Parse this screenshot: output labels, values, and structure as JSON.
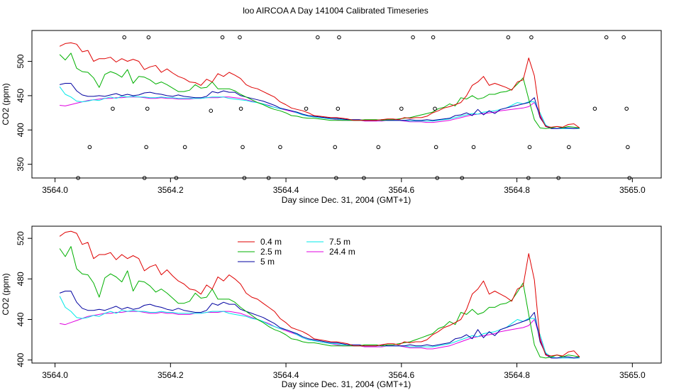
{
  "title": "loo AIRCOA A  Day 141004  Calibrated Timeseries",
  "chart_data": [
    {
      "type": "line+scatter",
      "xlabel": "Day since Dec. 31, 2004 (GMT+1)",
      "ylabel": "CO2 (ppm)",
      "xlim": [
        3563.96,
        3565.05
      ],
      "ylim": [
        330,
        545
      ],
      "xticks": [
        3564.0,
        3564.2,
        3564.4,
        3564.6,
        3564.8,
        3565.0
      ],
      "xtick_labels": [
        "3564.0",
        "3564.2",
        "3564.4",
        "3564.6",
        "3564.8",
        "3565.0"
      ],
      "yticks": [
        350,
        400,
        450,
        500
      ],
      "ytick_labels": [
        "350",
        "400",
        "450",
        "500"
      ],
      "grid": false,
      "legend": null,
      "markers": [
        {
          "x": 3564.04,
          "y": 330
        },
        {
          "x": 3564.06,
          "y": 375
        },
        {
          "x": 3564.1,
          "y": 431
        },
        {
          "x": 3564.12,
          "y": 535
        },
        {
          "x": 3564.155,
          "y": 330
        },
        {
          "x": 3564.158,
          "y": 375
        },
        {
          "x": 3564.16,
          "y": 431
        },
        {
          "x": 3564.162,
          "y": 535
        },
        {
          "x": 3564.21,
          "y": 330
        },
        {
          "x": 3564.225,
          "y": 375
        },
        {
          "x": 3564.27,
          "y": 428
        },
        {
          "x": 3564.29,
          "y": 535
        },
        {
          "x": 3564.32,
          "y": 535
        },
        {
          "x": 3564.322,
          "y": 431
        },
        {
          "x": 3564.325,
          "y": 375
        },
        {
          "x": 3564.328,
          "y": 330
        },
        {
          "x": 3564.37,
          "y": 330
        },
        {
          "x": 3564.39,
          "y": 375
        },
        {
          "x": 3564.435,
          "y": 431
        },
        {
          "x": 3564.455,
          "y": 535
        },
        {
          "x": 3564.485,
          "y": 375
        },
        {
          "x": 3564.487,
          "y": 330
        },
        {
          "x": 3564.49,
          "y": 431
        },
        {
          "x": 3564.492,
          "y": 535
        },
        {
          "x": 3564.535,
          "y": 330
        },
        {
          "x": 3564.56,
          "y": 375
        },
        {
          "x": 3564.6,
          "y": 431
        },
        {
          "x": 3564.62,
          "y": 535
        },
        {
          "x": 3564.655,
          "y": 535
        },
        {
          "x": 3564.658,
          "y": 431
        },
        {
          "x": 3564.66,
          "y": 375
        },
        {
          "x": 3564.662,
          "y": 330
        },
        {
          "x": 3564.705,
          "y": 330
        },
        {
          "x": 3564.725,
          "y": 375
        },
        {
          "x": 3564.785,
          "y": 535
        },
        {
          "x": 3564.82,
          "y": 330
        },
        {
          "x": 3564.822,
          "y": 375
        },
        {
          "x": 3564.825,
          "y": 535
        },
        {
          "x": 3564.872,
          "y": 330
        },
        {
          "x": 3564.89,
          "y": 375
        },
        {
          "x": 3564.935,
          "y": 431
        },
        {
          "x": 3564.955,
          "y": 535
        },
        {
          "x": 3564.985,
          "y": 535
        },
        {
          "x": 3564.99,
          "y": 431
        },
        {
          "x": 3564.992,
          "y": 375
        },
        {
          "x": 3564.995,
          "y": 330
        }
      ]
    },
    {
      "type": "line",
      "xlabel": "Day since Dec. 31, 2004 (GMT+1)",
      "ylabel": "CO2 (ppm)",
      "xlim": [
        3563.96,
        3565.05
      ],
      "ylim": [
        397,
        532
      ],
      "xticks": [
        3564.0,
        3564.2,
        3564.4,
        3564.6,
        3564.8,
        3565.0
      ],
      "xtick_labels": [
        "3564.0",
        "3564.2",
        "3564.4",
        "3564.6",
        "3564.8",
        "3565.0"
      ],
      "yticks": [
        400,
        440,
        480,
        520
      ],
      "ytick_labels": [
        "400",
        "440",
        "480",
        "520"
      ],
      "grid": false,
      "legend": "top-left"
    }
  ],
  "series_data": {
    "x_start": 3564.008,
    "x_step": 0.009789,
    "series": [
      {
        "name": "0.4 m",
        "color": "#df0000",
        "values": [
          522,
          526,
          527,
          525,
          514,
          516,
          500,
          504,
          504,
          506,
          499,
          504,
          500,
          503,
          500,
          488,
          492,
          494,
          484,
          489,
          483,
          478,
          475,
          470,
          469,
          465,
          474,
          470,
          482,
          478,
          484,
          480,
          475,
          466,
          462,
          460,
          456,
          452,
          448,
          441,
          437,
          432,
          430,
          428,
          425,
          421,
          420,
          419,
          418,
          418,
          417,
          416,
          414,
          414,
          414,
          414,
          414,
          415,
          416,
          416,
          415,
          418,
          417,
          418,
          418,
          420,
          425,
          428,
          432,
          434,
          437,
          440,
          450,
          465,
          470,
          478,
          465,
          468,
          465,
          462,
          458,
          470,
          473,
          505,
          479,
          420,
          405,
          404,
          405,
          404,
          408,
          409,
          403
        ]
      },
      {
        "name": "2.5 m",
        "color": "#00b000",
        "values": [
          510,
          502,
          512,
          490,
          485,
          484,
          476,
          462,
          481,
          485,
          482,
          477,
          488,
          468,
          478,
          477,
          473,
          467,
          470,
          466,
          461,
          456,
          456,
          458,
          466,
          461,
          462,
          470,
          460,
          460,
          460,
          457,
          452,
          448,
          444,
          440,
          437,
          433,
          430,
          428,
          425,
          421,
          420,
          418,
          417,
          417,
          416,
          415,
          414,
          414,
          414,
          414,
          414,
          414,
          415,
          415,
          415,
          414,
          415,
          415,
          416,
          417,
          418,
          420,
          422,
          424,
          426,
          431,
          433,
          438,
          435,
          447,
          445,
          450,
          445,
          447,
          452,
          452,
          455,
          456,
          459,
          467,
          476,
          445,
          415,
          403,
          402,
          403,
          405,
          403,
          405,
          404,
          403
        ]
      },
      {
        "name": "5 m",
        "color": "#0000a0",
        "values": [
          466,
          468,
          468,
          457,
          451,
          449,
          449,
          450,
          449,
          451,
          453,
          450,
          452,
          450,
          451,
          454,
          455,
          453,
          452,
          450,
          449,
          451,
          449,
          448,
          447,
          447,
          449,
          456,
          454,
          457,
          455,
          455,
          450,
          448,
          446,
          444,
          442,
          439,
          436,
          432,
          430,
          428,
          426,
          423,
          421,
          420,
          419,
          418,
          417,
          417,
          416,
          415,
          415,
          415,
          414,
          414,
          414,
          415,
          414,
          414,
          414,
          414,
          415,
          414,
          414,
          415,
          414,
          415,
          416,
          417,
          421,
          422,
          425,
          421,
          430,
          422,
          428,
          424,
          430,
          432,
          434,
          436,
          438,
          440,
          447,
          418,
          406,
          402,
          402,
          403,
          403,
          402,
          403
        ]
      },
      {
        "name": "7.5 m",
        "color": "#00e8e8",
        "values": [
          463,
          452,
          448,
          442,
          441,
          442,
          444,
          443,
          446,
          448,
          446,
          449,
          448,
          449,
          448,
          448,
          447,
          447,
          448,
          447,
          447,
          446,
          446,
          446,
          446,
          446,
          447,
          448,
          448,
          448,
          446,
          445,
          444,
          443,
          441,
          440,
          438,
          435,
          433,
          431,
          430,
          428,
          425,
          422,
          420,
          419,
          418,
          417,
          416,
          416,
          415,
          415,
          414,
          414,
          414,
          414,
          414,
          414,
          414,
          414,
          414,
          414,
          413,
          413,
          413,
          413,
          413,
          414,
          415,
          416,
          418,
          420,
          422,
          424,
          423,
          426,
          427,
          428,
          430,
          432,
          436,
          440,
          438,
          441,
          441,
          425,
          407,
          403,
          402,
          402,
          402,
          402,
          402
        ]
      },
      {
        "name": "24.4 m",
        "color": "#e000e0",
        "values": [
          436,
          435,
          437,
          439,
          441,
          443,
          444,
          445,
          446,
          446,
          447,
          447,
          448,
          448,
          448,
          447,
          446,
          446,
          447,
          446,
          446,
          445,
          445,
          445,
          446,
          446,
          447,
          447,
          447,
          448,
          448,
          447,
          446,
          444,
          442,
          440,
          438,
          436,
          433,
          431,
          429,
          427,
          425,
          422,
          420,
          419,
          418,
          417,
          416,
          415,
          414,
          414,
          414,
          414,
          413,
          413,
          413,
          413,
          414,
          414,
          414,
          413,
          412,
          412,
          412,
          411,
          411,
          412,
          413,
          414,
          416,
          418,
          420,
          422,
          423,
          424,
          425,
          426,
          428,
          429,
          430,
          431,
          432,
          434,
          440,
          422,
          405,
          402,
          402,
          402,
          402,
          402,
          402
        ]
      }
    ]
  }
}
